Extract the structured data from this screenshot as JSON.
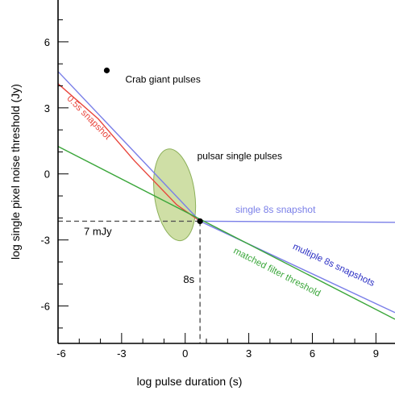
{
  "chart_data": {
    "type": "line",
    "title": "",
    "xlabel": "log pulse duration (s)",
    "ylabel": "log single pixel noise threshold (Jy)",
    "xlim": [
      -6,
      9.9
    ],
    "ylim": [
      -7.7,
      7.9
    ],
    "x_ticks": [
      -6,
      -3,
      0,
      3,
      6,
      9
    ],
    "x_tick_labels": [
      "-6",
      "-3",
      "0",
      "3",
      "6",
      "9"
    ],
    "y_ticks": [
      -6,
      -3,
      0,
      3,
      6
    ],
    "y_tick_labels": [
      "-6",
      "-3",
      "0",
      "3",
      "6"
    ],
    "grid": false,
    "series": [
      {
        "name": "0.5s snapshot",
        "color": "#e8453c",
        "x": [
          -6,
          -4.1,
          -2.4,
          -0.4,
          0.7
        ],
        "y": [
          4.1,
          2.5,
          0.6,
          -1.4,
          -2.15
        ]
      },
      {
        "name": "",
        "color": "#7a7fe8",
        "x": [
          -6,
          0.7
        ],
        "y": [
          4.65,
          -2.15
        ]
      },
      {
        "name": "single 8s snapshot",
        "color": "#7a7fe8",
        "x": [
          0.7,
          9.9
        ],
        "y": [
          -2.15,
          -2.2
        ]
      },
      {
        "name": "multiple 8s snapshots",
        "color": "#7a7fe8",
        "x": [
          0.7,
          9.9
        ],
        "y": [
          -2.15,
          -6.3
        ]
      },
      {
        "name": "matched filter threshold",
        "color": "#3aa63a",
        "x": [
          -6,
          9.9
        ],
        "y": [
          1.25,
          -6.6
        ]
      }
    ],
    "points": [
      {
        "label": "Crab giant pulses",
        "x": -3.7,
        "y": 4.7
      },
      {
        "label": "",
        "x": 0.7,
        "y": -2.15
      }
    ],
    "regions": [
      {
        "label": "pulsar single pulses",
        "x": -0.5,
        "y": -0.95,
        "rx": 0.95,
        "ry": 2.1,
        "fill": "#cfdfa6",
        "stroke": "#8cb05a"
      }
    ],
    "reference_lines": [
      {
        "label": "7 mJy",
        "orientation": "horizontal",
        "value": -2.15
      },
      {
        "label": "8s",
        "orientation": "vertical",
        "value": 0.7
      }
    ]
  }
}
